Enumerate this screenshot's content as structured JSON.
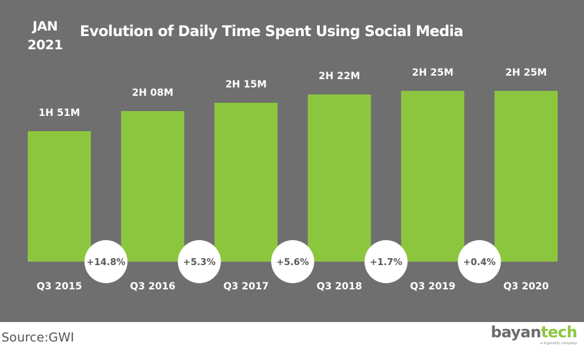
{
  "header": {
    "date_line1": "JAN",
    "date_line2": "2021",
    "title": "Evolution of Daily Time Spent Using Social Media"
  },
  "footer": {
    "source": "Source:GWI",
    "brand_part1": "bayan",
    "brand_part2": "tech",
    "brand_tagline": "a Ingenuity company"
  },
  "colors": {
    "background": "#6f6f6f",
    "bar": "#8cc63f",
    "text": "#ffffff",
    "badge_fill": "#ffffff",
    "badge_text": "#5a5a5a"
  },
  "chart_data": {
    "type": "bar",
    "categories": [
      "Q3 2015",
      "Q3 2016",
      "Q3 2017",
      "Q3 2018",
      "Q3 2019",
      "Q3 2020"
    ],
    "values": [
      111,
      128,
      135,
      142,
      145,
      145
    ],
    "value_labels": [
      "1H 51M",
      "2H 08M",
      "2H 15M",
      "2H 22M",
      "2H 25M",
      "2H 25M"
    ],
    "growth_labels": [
      "+14.8%",
      "+5.3%",
      "+5.6%",
      "+1.7%",
      "+0.4%"
    ],
    "title": "Evolution of Daily Time Spent Using Social Media",
    "xlabel": "",
    "ylabel": "",
    "grid": false
  }
}
